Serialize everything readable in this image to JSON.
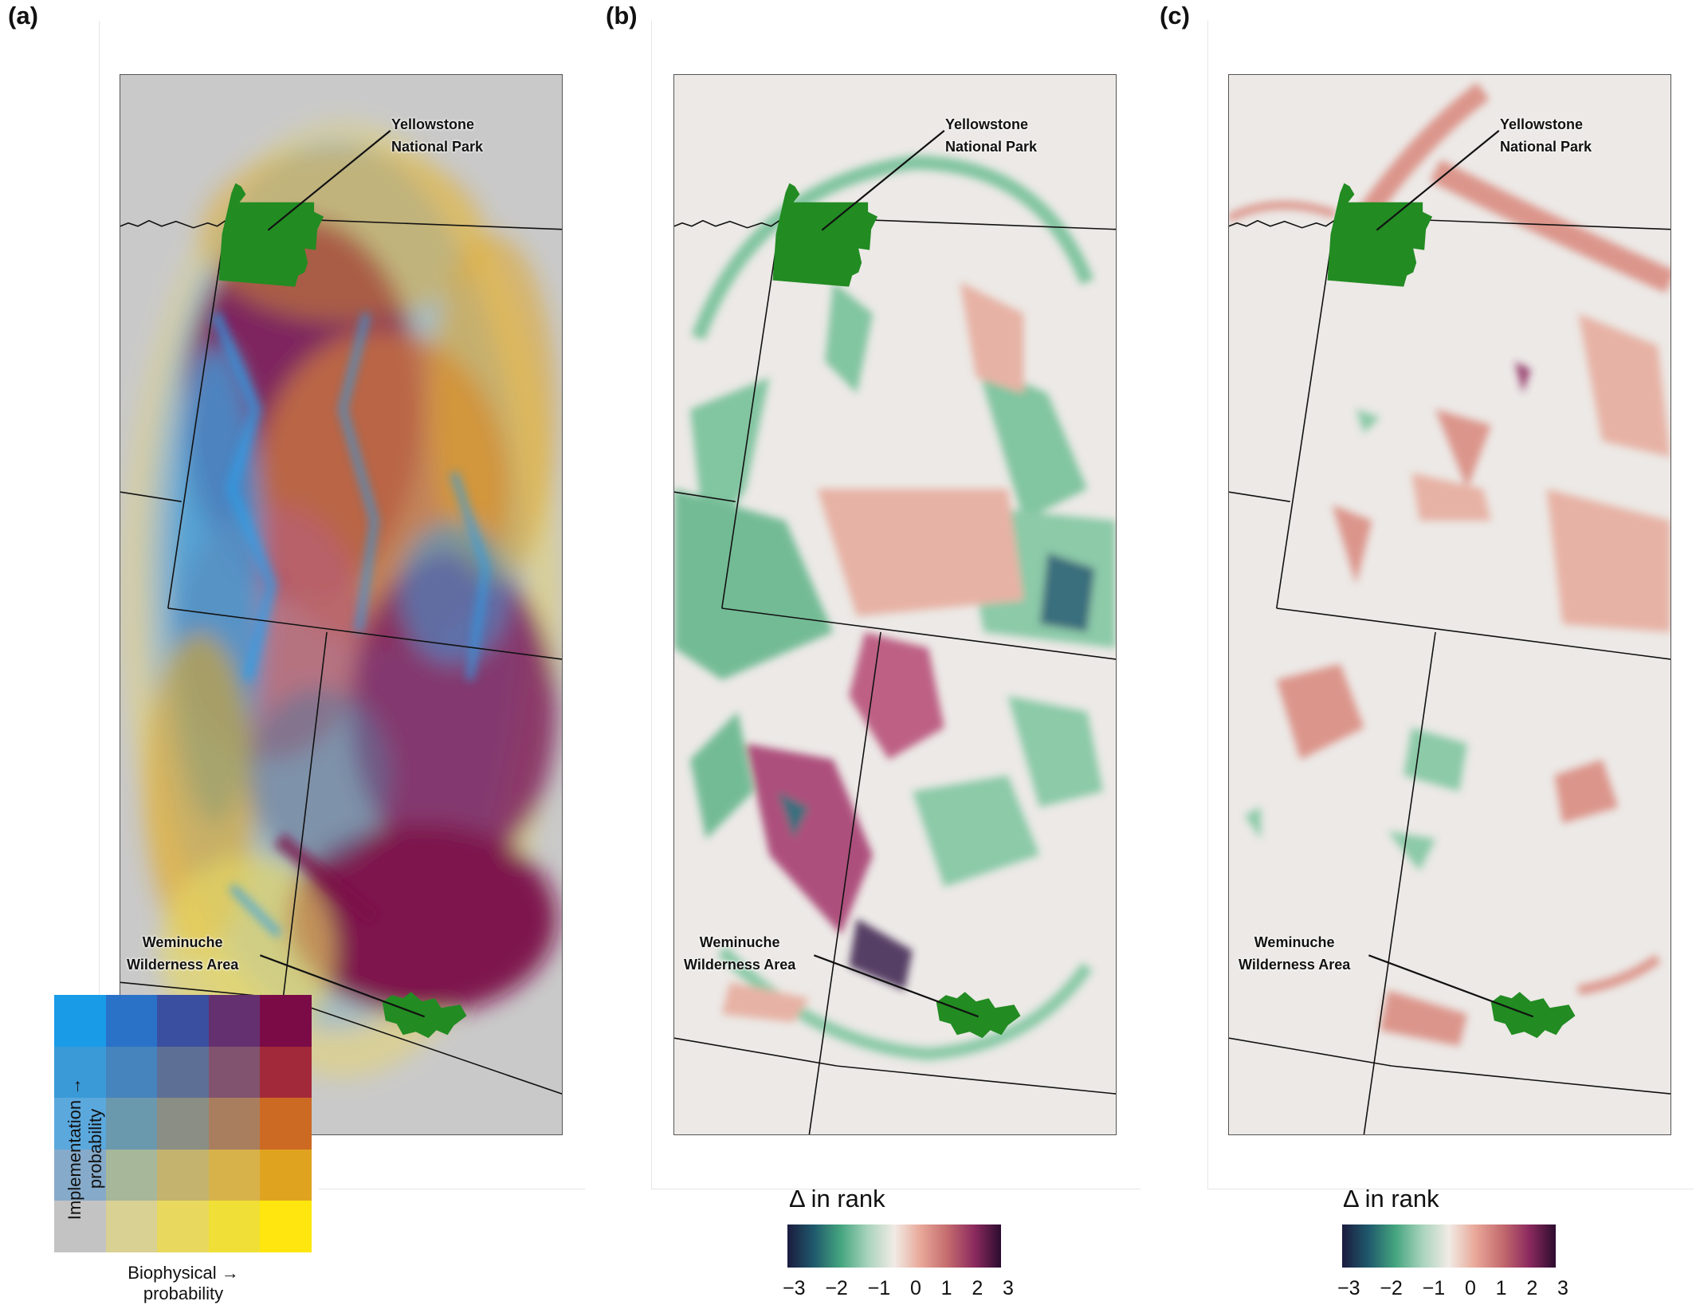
{
  "panels": {
    "a": {
      "letter": "(a)"
    },
    "b": {
      "letter": "(b)"
    },
    "c": {
      "letter": "(c)"
    }
  },
  "labels": {
    "yellowstone": "Yellowstone\nNational Park",
    "weminuche": "Weminuche\nWilderness Area"
  },
  "bivariate_legend": {
    "y_axis": "Implementation →\nprobability",
    "x_axis": "Biophysical →\nprobability",
    "colors": [
      [
        "#1a9be8",
        "#2a72c8",
        "#3b4fa0",
        "#65306f",
        "#7a0b46"
      ],
      [
        "#3a9ad8",
        "#4584bd",
        "#5e6f96",
        "#82536f",
        "#a2293a"
      ],
      [
        "#5ba8dd",
        "#6a98ad",
        "#8a8e84",
        "#a97e5e",
        "#cc6a24"
      ],
      [
        "#86aac9",
        "#a6b79a",
        "#c3b36e",
        "#d7b24b",
        "#e0a320"
      ],
      [
        "#c3c3c3",
        "#d9d093",
        "#e8d85e",
        "#f0df36",
        "#ffe60e"
      ]
    ]
  },
  "colorbar_b": {
    "title": "Δ in rank",
    "ticks": [
      "−3",
      "−2",
      "−1",
      "0",
      "1",
      "2",
      "3"
    ],
    "colors": [
      "#1b1b3f",
      "#1f5a6c",
      "#45a57f",
      "#a8d3bc",
      "#f1ebe5",
      "#e8a798",
      "#c46b6e",
      "#8c2a5e",
      "#2c0c2f"
    ]
  },
  "colorbar_c": {
    "title": "Δ in rank",
    "ticks": [
      "−3",
      "−2",
      "−1",
      "0",
      "1",
      "2",
      "3"
    ],
    "colors": [
      "#1b1b3f",
      "#1f5a6c",
      "#45a57f",
      "#a8d3bc",
      "#f1ebe5",
      "#e8a798",
      "#c46b6e",
      "#8c2a5e",
      "#2c0c2f"
    ]
  },
  "colors": {
    "protected_area": "#228b22",
    "terrain": "#e9e6e3",
    "border": "#111111"
  }
}
